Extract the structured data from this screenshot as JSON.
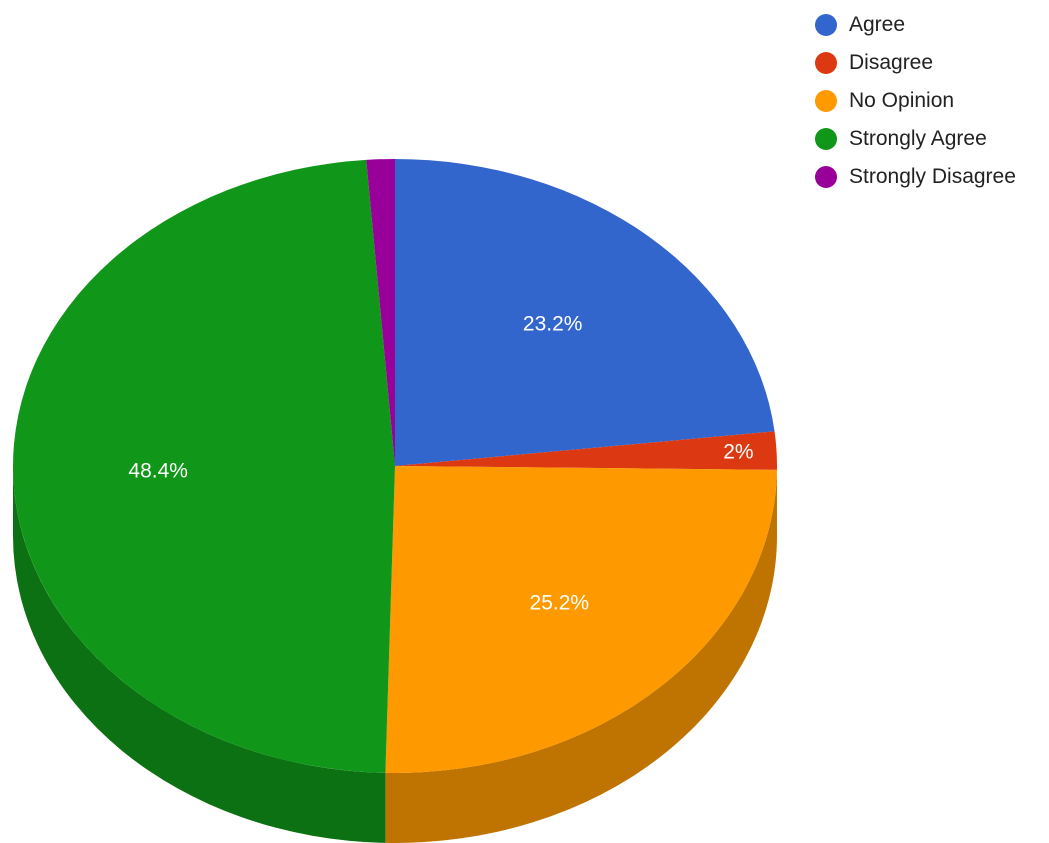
{
  "chart_data": {
    "type": "pie",
    "style": "3d",
    "legend_position": "top-right",
    "slices": [
      {
        "label": "Agree",
        "value": 23.2,
        "value_label": "23.2%",
        "color": "#3366cc",
        "side_color": "#264d99"
      },
      {
        "label": "Disagree",
        "value": 2.0,
        "value_label": "2%",
        "color": "#dc3912",
        "side_color": "#a52b0e"
      },
      {
        "label": "No Opinion",
        "value": 25.2,
        "value_label": "25.2%",
        "color": "#ff9900",
        "side_color": "#bf7300"
      },
      {
        "label": "Strongly Agree",
        "value": 48.4,
        "value_label": "48.4%",
        "color": "#109618",
        "side_color": "#0c7112"
      },
      {
        "label": "Strongly Disagree",
        "value": 1.2,
        "value_label": "",
        "color": "#990099",
        "side_color": "#730073"
      }
    ]
  }
}
